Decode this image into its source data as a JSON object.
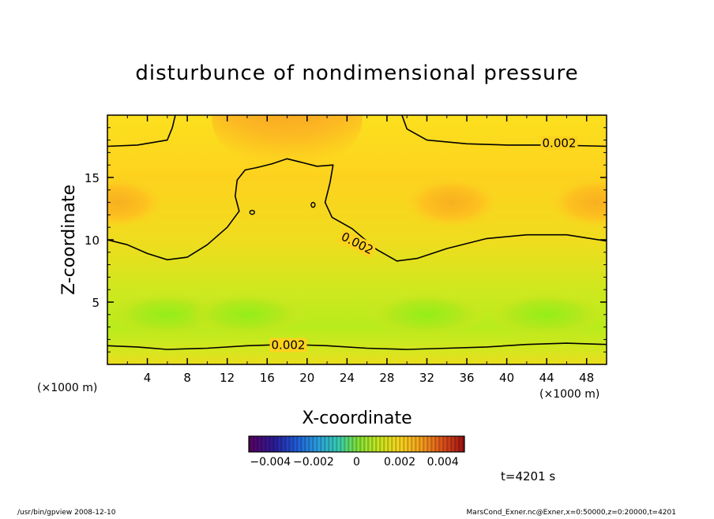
{
  "chart_data": {
    "type": "heatmap",
    "title": "disturbunce of nondimensional pressure",
    "xlabel": "X-coordinate",
    "ylabel": "Z-coordinate",
    "x_unit": "(×1000 m)",
    "z_unit": "(×1000 m)",
    "xlim": [
      0,
      50
    ],
    "ylim": [
      0,
      20
    ],
    "x_ticks": [
      4,
      8,
      12,
      16,
      20,
      24,
      28,
      32,
      36,
      40,
      44,
      48
    ],
    "y_ticks": [
      5,
      10,
      15
    ],
    "contours": [
      {
        "label": "0.002",
        "points": [
          [
            0,
            17.5
          ],
          [
            3,
            17.6
          ],
          [
            6,
            18.0
          ],
          [
            6.5,
            19
          ],
          [
            6.8,
            20
          ]
        ]
      },
      {
        "label": "0.002",
        "points": [
          [
            29.5,
            20
          ],
          [
            30,
            18.9
          ],
          [
            32,
            18
          ],
          [
            36,
            17.7
          ],
          [
            40,
            17.6
          ],
          [
            45,
            17.6
          ],
          [
            50,
            17.5
          ]
        ]
      },
      {
        "label": "0.002",
        "points": [
          [
            0,
            10.0
          ],
          [
            2,
            9.6
          ],
          [
            4,
            8.9
          ],
          [
            6,
            8.4
          ],
          [
            8,
            8.6
          ],
          [
            10,
            9.6
          ],
          [
            12,
            11.0
          ],
          [
            13.2,
            12.3
          ],
          [
            12.8,
            13.5
          ],
          [
            13.0,
            14.8
          ],
          [
            13.8,
            15.6
          ],
          [
            15.0,
            15.8
          ],
          [
            16.5,
            16.1
          ],
          [
            18,
            16.5
          ],
          [
            19.5,
            16.2
          ],
          [
            21,
            15.9
          ],
          [
            22.6,
            16.0
          ],
          [
            22.3,
            14.6
          ],
          [
            21.8,
            13.0
          ],
          [
            22.5,
            11.8
          ],
          [
            24.5,
            10.9
          ],
          [
            27.0,
            9.2
          ],
          [
            29.0,
            8.3
          ],
          [
            31.0,
            8.5
          ],
          [
            34.0,
            9.3
          ],
          [
            38.0,
            10.1
          ],
          [
            42.0,
            10.4
          ],
          [
            46.0,
            10.4
          ],
          [
            50,
            9.9
          ]
        ]
      },
      {
        "label": "0.002",
        "points": [
          [
            0,
            1.5
          ],
          [
            3,
            1.4
          ],
          [
            6,
            1.2
          ],
          [
            10,
            1.3
          ],
          [
            14,
            1.5
          ],
          [
            18,
            1.6
          ],
          [
            22,
            1.5
          ],
          [
            26,
            1.3
          ],
          [
            30,
            1.2
          ],
          [
            34,
            1.3
          ],
          [
            38,
            1.4
          ],
          [
            42,
            1.6
          ],
          [
            46,
            1.7
          ],
          [
            50,
            1.6
          ]
        ]
      }
    ],
    "colorbar": {
      "range": [
        -0.005,
        0.005
      ],
      "tick_labels": [
        "−0.004",
        "−0.002",
        "0",
        "0.002",
        "0.004"
      ],
      "tick_values": [
        -0.004,
        -0.002,
        0,
        0.002,
        0.004
      ]
    },
    "fields": [
      {
        "x": 18,
        "z": 19.5,
        "value": 0.0032
      },
      {
        "x": 18,
        "z": 19.8,
        "value": 0.0036
      },
      {
        "x": 1,
        "z": 13,
        "value": 0.0024
      },
      {
        "x": 49,
        "z": 13,
        "value": 0.0024
      },
      {
        "x": 34.5,
        "z": 13,
        "value": 0.0026
      },
      {
        "x": 6,
        "z": 4,
        "value": 0.0008
      },
      {
        "x": 14,
        "z": 4,
        "value": 0.0006
      },
      {
        "x": 32,
        "z": 4,
        "value": 0.0006
      },
      {
        "x": 44,
        "z": 4,
        "value": 0.0009
      }
    ],
    "colors": {
      "high": "#f09a1e",
      "mid": "#ffcc1e",
      "low": "#c8e81e",
      "lowest": "#a0f014"
    }
  },
  "time_label": "t=4201 s",
  "footer_left": "/usr/bin/gpview   2008-12-10",
  "footer_right": "MarsCond_Exner.nc@Exner,x=0:50000,z=0:20000,t=4201"
}
